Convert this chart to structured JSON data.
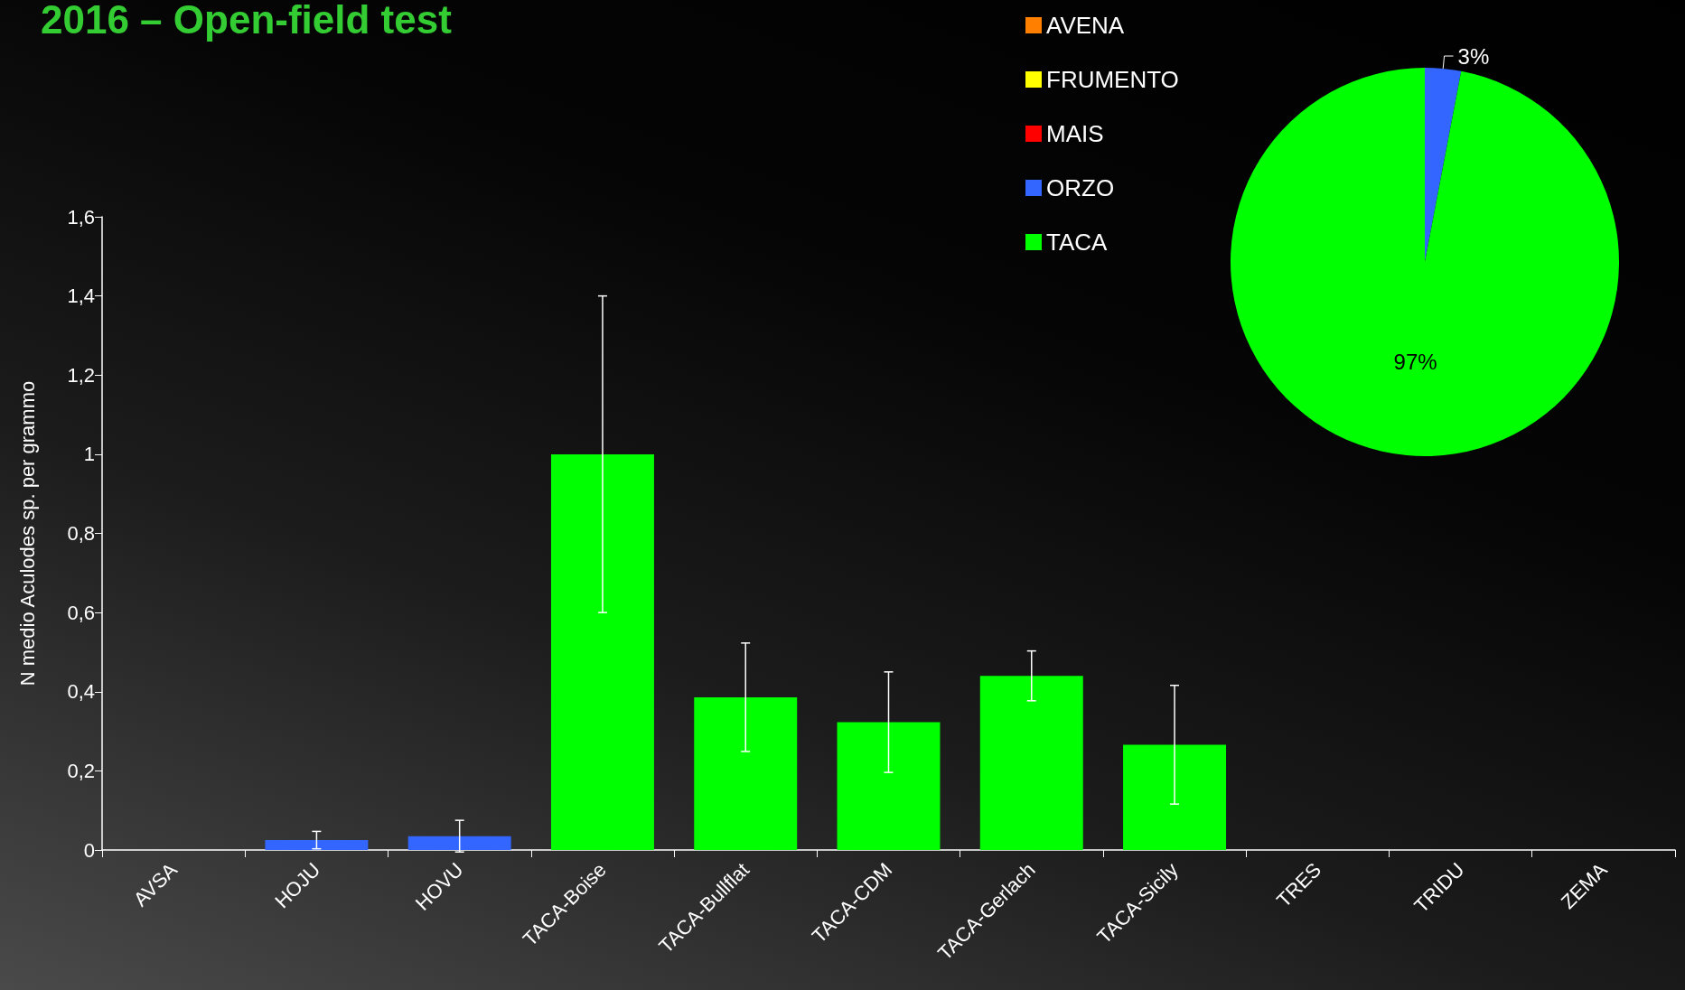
{
  "chart_data": [
    {
      "type": "bar",
      "title": "2016 – Open-field test",
      "ylabel": "N medio Aculodes sp. per grammo",
      "categories": [
        "AVSA",
        "HOJU",
        "HOVU",
        "TACA-Boise",
        "TACA-Bullflat",
        "TACA-CDM",
        "TACA-Gerlach",
        "TACA-Sicily",
        "TRES",
        "TRIDU",
        "ZEMA"
      ],
      "values": [
        0,
        0.025,
        0.035,
        1.0,
        0.386,
        0.323,
        0.44,
        0.266,
        0,
        0,
        0
      ],
      "errors": [
        null,
        0.022,
        0.04,
        0.4,
        0.137,
        0.127,
        0.063,
        0.15,
        null,
        null,
        null
      ],
      "colors": [
        "#ff8000",
        "#3366ff",
        "#3366ff",
        "#00ff00",
        "#00ff00",
        "#00ff00",
        "#00ff00",
        "#00ff00",
        "#ffff00",
        "#ffff00",
        "#ff0000"
      ],
      "ylim": [
        0,
        1.6
      ],
      "yticks": [
        0,
        {
          "value": 0.2,
          "label": "0,2"
        },
        {
          "value": 0.4,
          "label": "0,4"
        },
        {
          "value": 0.6,
          "label": "0,6"
        },
        {
          "value": 0.8,
          "label": "0,8"
        },
        1,
        {
          "value": 1.2,
          "label": "1,2"
        },
        {
          "value": 1.4,
          "label": "1,4"
        },
        {
          "value": 1.6,
          "label": "1,6"
        }
      ],
      "grid": false,
      "legend": false
    },
    {
      "type": "pie",
      "categories": [
        "AVENA",
        "FRUMENTO",
        "MAIS",
        "ORZO",
        "TACA"
      ],
      "values": [
        0,
        0,
        0,
        3,
        97
      ],
      "colors": [
        "#ff8000",
        "#ffff00",
        "#ff0000",
        "#3366ff",
        "#00ff00"
      ],
      "value_labels": [
        null,
        null,
        null,
        "3%",
        "97%"
      ],
      "legend": "left"
    }
  ]
}
